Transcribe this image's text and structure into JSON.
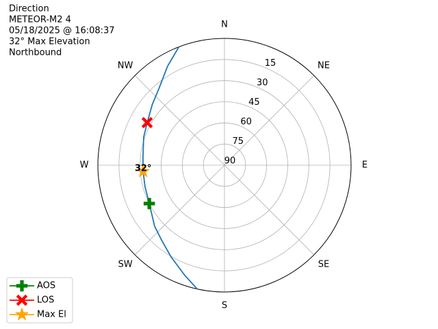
{
  "chart_data": {
    "type": "polar",
    "title_lines": [
      "Direction",
      "METEOR-M2 4",
      "05/18/2025 @ 16:08:37",
      "32° Max Elevation",
      "Northbound"
    ],
    "xticks": [
      {
        "value": 0,
        "label": "N"
      },
      {
        "value": 45,
        "label": "NE"
      },
      {
        "value": 90,
        "label": "E"
      },
      {
        "value": 135,
        "label": "SE"
      },
      {
        "value": 180,
        "label": "S"
      },
      {
        "value": 225,
        "label": "SW"
      },
      {
        "value": 270,
        "label": "W"
      },
      {
        "value": 315,
        "label": "NW"
      }
    ],
    "ylim": [
      90,
      0
    ],
    "yticks": [
      15,
      30,
      45,
      60,
      75,
      90
    ],
    "grid": true,
    "legend": "lower-left",
    "series": [
      {
        "color": "#1f77b4",
        "marker": "line",
        "x": [
          192.4,
          200,
          210.2,
          220,
          228.9,
          243,
          255,
          265.6,
          275.3,
          289.2,
          298.8,
          310,
          319.1,
          330,
          338.9
        ],
        "values": [
          0,
          7,
          14.6,
          20.5,
          24.1,
          30,
          31.5,
          32,
          31.8,
          29.2,
          27.3,
          23,
          18.6,
          9,
          0
        ]
      },
      {
        "name": "AOS",
        "color": "green",
        "marker": "plus",
        "x": [
          243
        ],
        "values": [
          30
        ]
      },
      {
        "name": "LOS",
        "color": "red",
        "marker": "x",
        "x": [
          298.8
        ],
        "values": [
          27.3
        ]
      },
      {
        "name": "Max El",
        "color": "orange",
        "marker": "star",
        "x": [
          265.6
        ],
        "values": [
          32
        ]
      }
    ],
    "annotations": [
      {
        "text": "32°"
      }
    ]
  }
}
